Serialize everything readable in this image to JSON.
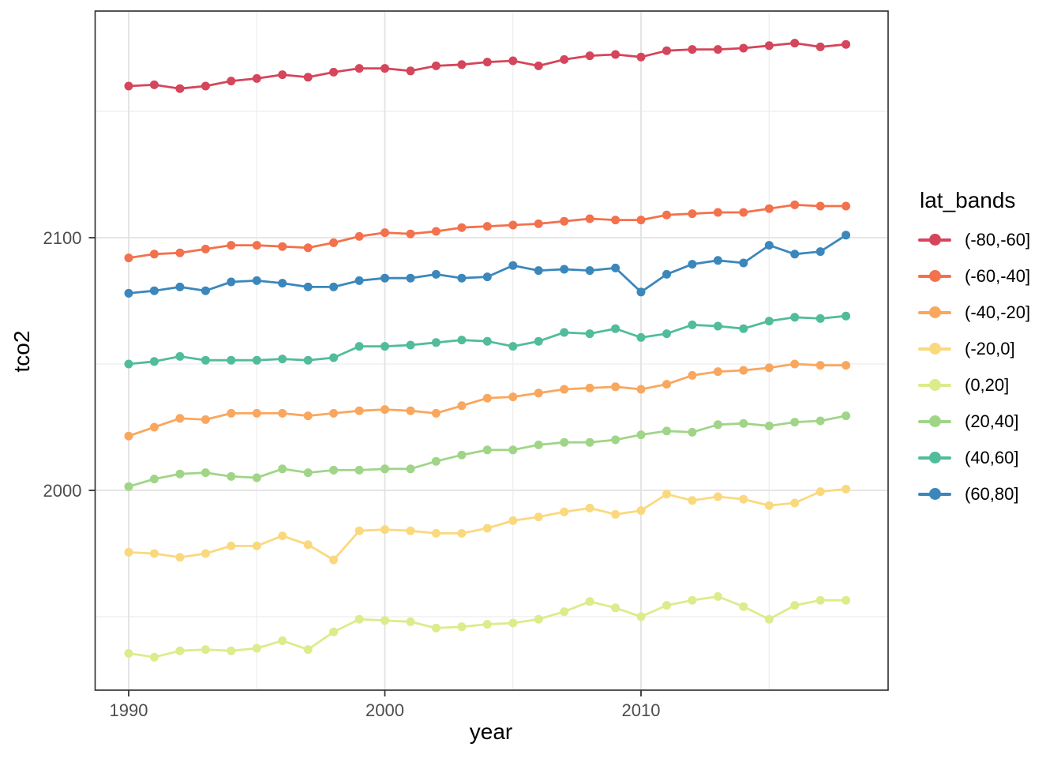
{
  "page": {
    "background": "#ffffff"
  },
  "axes": {
    "x": {
      "title": "year",
      "major_tick_labels": [
        "1990",
        "2000",
        "2010"
      ],
      "major_values": [
        1990,
        2000,
        2010
      ],
      "minor_values": [
        1995,
        2005,
        2015
      ]
    },
    "y": {
      "title": "tco2",
      "major_tick_labels": [
        "2000",
        "2100"
      ],
      "major_values": [
        2000,
        2100
      ],
      "minor_values": [
        1950,
        2050,
        2150
      ]
    }
  },
  "legend": {
    "title": "lat_bands"
  },
  "style": {
    "grid_major_color": "#e2e2e2",
    "grid_minor_color": "#ededed",
    "panel_border_color": "#2b2b2b",
    "tick_color": "#333333",
    "tick_label_color": "#4d4d4d",
    "axis_title_color": "#000000"
  },
  "chart_data": {
    "type": "line",
    "title": "",
    "xlabel": "year",
    "ylabel": "tco2",
    "xlim": [
      1988.7,
      2019.7
    ],
    "ylim": [
      1921,
      2190
    ],
    "grid": true,
    "legend_position": "right",
    "x": [
      1990,
      1991,
      1992,
      1993,
      1994,
      1995,
      1996,
      1997,
      1998,
      1999,
      2000,
      2001,
      2002,
      2003,
      2004,
      2005,
      2006,
      2007,
      2008,
      2009,
      2010,
      2011,
      2012,
      2013,
      2014,
      2015,
      2016,
      2017,
      2018
    ],
    "series": [
      {
        "name": "(-80,-60]",
        "color": "#d5455b",
        "values": [
          2160,
          2160.5,
          2159,
          2160,
          2162,
          2163,
          2164.5,
          2163.5,
          2165.5,
          2167,
          2167,
          2166,
          2168,
          2168.5,
          2169.5,
          2170,
          2168,
          2170.5,
          2172,
          2172.5,
          2171.5,
          2174,
          2174.5,
          2174.5,
          2175,
          2176,
          2177,
          2175.5,
          2176.5
        ]
      },
      {
        "name": "(-60,-40]",
        "color": "#f3714c",
        "values": [
          2092,
          2093.5,
          2094,
          2095.5,
          2097,
          2097,
          2096.5,
          2096,
          2098,
          2100.5,
          2102,
          2101.5,
          2102.5,
          2104,
          2104.5,
          2105,
          2105.5,
          2106.5,
          2107.5,
          2107,
          2107,
          2109,
          2109.5,
          2110,
          2110,
          2111.5,
          2113,
          2112.5,
          2112.5
        ]
      },
      {
        "name": "(-40,-20]",
        "color": "#f9a75e",
        "values": [
          2021.5,
          2025,
          2028.5,
          2028,
          2030.5,
          2030.5,
          2030.5,
          2029.5,
          2030.5,
          2031.5,
          2032,
          2031.5,
          2030.5,
          2033.5,
          2036.5,
          2037,
          2038.5,
          2040,
          2040.5,
          2041,
          2040,
          2042,
          2045.5,
          2047,
          2047.5,
          2048.5,
          2050,
          2049.5,
          2049.5
        ]
      },
      {
        "name": "(-20,0]",
        "color": "#fad97e",
        "values": [
          1975.5,
          1975,
          1973.5,
          1975,
          1978,
          1978,
          1982,
          1978.5,
          1972.5,
          1984,
          1984.5,
          1984,
          1983,
          1983,
          1985,
          1988,
          1989.5,
          1991.5,
          1993,
          1990.5,
          1992,
          1998.5,
          1996,
          1997.5,
          1996.5,
          1994,
          1995,
          1999.5,
          2000.5
        ]
      },
      {
        "name": "(0,20]",
        "color": "#dbec8b",
        "values": [
          1935.5,
          1934,
          1936.5,
          1937,
          1936.5,
          1937.5,
          1940.5,
          1937,
          1944,
          1949,
          1948.5,
          1948,
          1945.5,
          1946,
          1947,
          1947.5,
          1949,
          1952,
          1956,
          1953.5,
          1950,
          1954.5,
          1956.5,
          1958,
          1954,
          1949,
          1954.5,
          1956.5,
          1956.5
        ]
      },
      {
        "name": "(20,40]",
        "color": "#a0d588",
        "values": [
          2001.5,
          2004.5,
          2006.5,
          2007,
          2005.5,
          2005,
          2008.5,
          2007,
          2008,
          2008,
          2008.5,
          2008.5,
          2011.5,
          2014,
          2016,
          2016,
          2018,
          2019,
          2019,
          2020,
          2022,
          2023.5,
          2023,
          2026,
          2026.5,
          2025.5,
          2027,
          2027.5,
          2029.5
        ]
      },
      {
        "name": "(40,60]",
        "color": "#51bc9b",
        "values": [
          2050,
          2051,
          2053,
          2051.5,
          2051.5,
          2051.5,
          2052,
          2051.5,
          2052.5,
          2057,
          2057,
          2057.5,
          2058.5,
          2059.5,
          2059,
          2057,
          2059,
          2062.5,
          2062,
          2064,
          2060.5,
          2062,
          2065.5,
          2065,
          2064,
          2067,
          2068.5,
          2068,
          2069
        ]
      },
      {
        "name": "(60,80]",
        "color": "#3b87bc",
        "values": [
          2078,
          2079,
          2080.5,
          2079,
          2082.5,
          2083,
          2082,
          2080.5,
          2080.5,
          2083,
          2084,
          2084,
          2085.5,
          2084,
          2084.5,
          2089,
          2087,
          2087.5,
          2087,
          2088,
          2078.5,
          2085.5,
          2089.5,
          2091,
          2090,
          2097,
          2093.5,
          2094.5,
          2101
        ]
      }
    ]
  }
}
